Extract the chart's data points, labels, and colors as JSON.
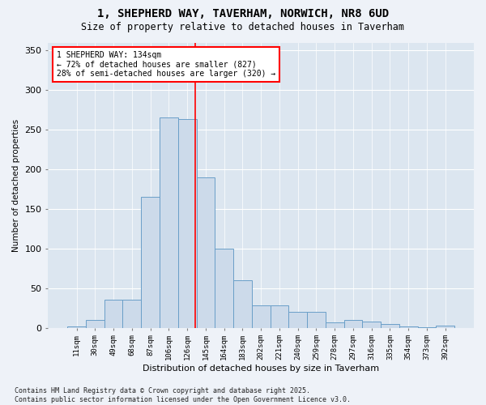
{
  "title1": "1, SHEPHERD WAY, TAVERHAM, NORWICH, NR8 6UD",
  "title2": "Size of property relative to detached houses in Taverham",
  "xlabel": "Distribution of detached houses by size in Taverham",
  "ylabel": "Number of detached properties",
  "bar_labels": [
    "11sqm",
    "30sqm",
    "49sqm",
    "68sqm",
    "87sqm",
    "106sqm",
    "126sqm",
    "145sqm",
    "164sqm",
    "183sqm",
    "202sqm",
    "221sqm",
    "240sqm",
    "259sqm",
    "278sqm",
    "297sqm",
    "316sqm",
    "335sqm",
    "354sqm",
    "373sqm",
    "392sqm"
  ],
  "bar_values": [
    2,
    10,
    35,
    35,
    165,
    265,
    263,
    190,
    100,
    60,
    28,
    28,
    20,
    20,
    7,
    10,
    8,
    5,
    2,
    1,
    3
  ],
  "bar_color": "#ccdaea",
  "bar_edge_color": "#6a9fc8",
  "ylim": [
    0,
    360
  ],
  "yticks": [
    0,
    50,
    100,
    150,
    200,
    250,
    300,
    350
  ],
  "annotation_title": "1 SHEPHERD WAY: 134sqm",
  "annotation_line1": "← 72% of detached houses are smaller (827)",
  "annotation_line2": "28% of semi-detached houses are larger (320) →",
  "footnote1": "Contains HM Land Registry data © Crown copyright and database right 2025.",
  "footnote2": "Contains public sector information licensed under the Open Government Licence v3.0.",
  "background_color": "#eef2f8",
  "plot_bg_color": "#dce6f0"
}
